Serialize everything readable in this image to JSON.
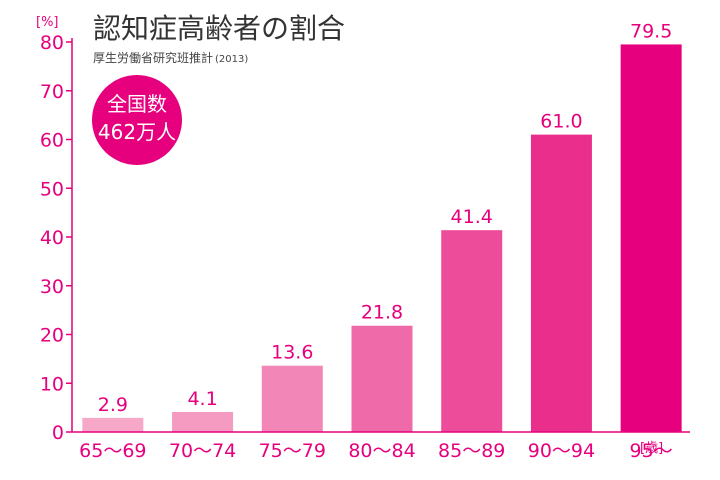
{
  "chart_data": {
    "type": "bar",
    "title": "認知症高齢者の割合",
    "subtitle": "厚生労働省研究班推計",
    "subtitle_year": "(2013)",
    "y_unit": "[%]",
    "x_unit": "[歳]",
    "categories": [
      "65〜69",
      "70〜74",
      "75〜79",
      "80〜84",
      "85〜89",
      "90〜94",
      "95〜"
    ],
    "values": [
      2.9,
      4.1,
      13.6,
      21.8,
      41.4,
      61.0,
      79.5
    ],
    "value_labels": [
      "2.9",
      "4.1",
      "13.6",
      "21.8",
      "41.4",
      "61.0",
      "79.5"
    ],
    "y_ticks": [
      "0",
      "10",
      "20",
      "30",
      "40",
      "50",
      "60",
      "70",
      "80"
    ],
    "ylim": [
      0,
      80
    ],
    "grid": false,
    "bar_colors": [
      "#f7a8c8",
      "#f59ac1",
      "#f286b6",
      "#ef6aa8",
      "#ec4c99",
      "#e92e8c",
      "#e6007e"
    ],
    "accent_color": "#e6007e",
    "badge": {
      "line1": "全国数",
      "line2": "462万人"
    }
  }
}
